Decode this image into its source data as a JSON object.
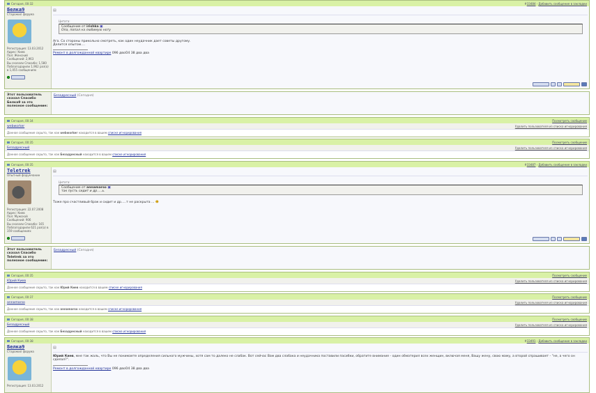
{
  "posts": [
    {
      "date": "Сегодня, 00:32",
      "num": "33484",
      "bookmark": "Добавить сообщение в закладки",
      "user": {
        "name": "Белка9",
        "title": "Старожил форума",
        "reg": "Регистрация: 13.03.2012",
        "addr": "Адрес: Киев",
        "sex": "Пол: Женский",
        "msgs": "Сообщений: 2,963",
        "thanked": "Вы сказали Спасибо: 1,580",
        "got": "Поблагодарили 1,962 раз(а) в 1,055 сообщениях"
      },
      "quote_label": "Цитата:",
      "quote_from": "Сообщение от",
      "quote_author": "irishka",
      "quote_text": "Опа, попал на любимую ноту",
      "text": "Ага. Со стороны прикольно смотреть, как один неудачник дает советы другому.",
      "text2": "Делится опытом....",
      "sig_link": "Ремонт в долгожданной квартире",
      "sig_text": "096 двоО4 38 два два"
    },
    {
      "date": "Сегодня, 00:35",
      "num": "33487",
      "bookmark": "Добавить сообщение в закладки",
      "user": {
        "name": "Teletrek",
        "title": "Опытный форумчанин",
        "reg": "Регистрация: 22.07.2008",
        "addr": "Адрес: Киев",
        "sex": "Пол: Мужской",
        "msgs": "Сообщений: 906",
        "thanked": "Вы сказали Спасибо: 165",
        "got": "Поблагодарили 621 раз(а) в 359 сообщениях"
      },
      "quote_label": "Цитата:",
      "quote_from": "Сообщение от",
      "quote_author": "annamarso",
      "quote_text": "так пусть сидит и др.....ь.",
      "text": "Тоже про счастливый брак и сидит и др.....т не раскрыта ..."
    },
    {
      "date": "Сегодня, 00:38",
      "num": "33491",
      "bookmark": "Добавить сообщение в закладки",
      "user": {
        "name": "Белка9",
        "title": "Старожил форума",
        "reg": "Регистрация: 13.03.2012"
      },
      "author_ref": "Юрий Киев",
      "text": ", мне так жаль, что Вы не понимаете определения сильного мужчины, хотя сам то далеко не слабак. Вот сейчас Вам два слабака и неудачника поставили пасибки, обратите внимание - один обматерил всех женщин, включая меня, Вашу жену, свою маму, а второй спрашивает - \"не, а чего он сделал?\".",
      "sig_link": "Ремонт в долгожданной квартире",
      "sig_text": "096 двоО4 38 два два"
    }
  ],
  "thanks": [
    {
      "label": "Этот пользователь сказал Спасибо Белка9 за это полезное сообщение:",
      "user": "Безадресный",
      "when": "(Сегодня)"
    },
    {
      "label": "Этот пользователь сказал Спасибо Teletrek за это полезное сообщение:",
      "user": "Безадресный",
      "when": "(Сегодня)"
    }
  ],
  "ignored": [
    {
      "date": "Сегодня, 00:34",
      "user": "webworker"
    },
    {
      "date": "Сегодня, 00:35",
      "user": "Безадресный"
    },
    {
      "date": "Сегодня, 00:35",
      "user": "Юрий Киев"
    },
    {
      "date": "Сегодня, 00:37",
      "user": "annamarso"
    },
    {
      "date": "Сегодня, 00:38",
      "user": "Безадресный"
    }
  ],
  "ignore_text": {
    "pre": "Данное сообщение скрыто, так как",
    "mid": "находится в вашем",
    "link": "списке игнорирования",
    "show": "Посмотреть сообщение",
    "remove": "Удалить пользователя из списка игнорирования"
  },
  "buttons": {
    "reply": "Цитата",
    "thanks": "Спасибо"
  }
}
